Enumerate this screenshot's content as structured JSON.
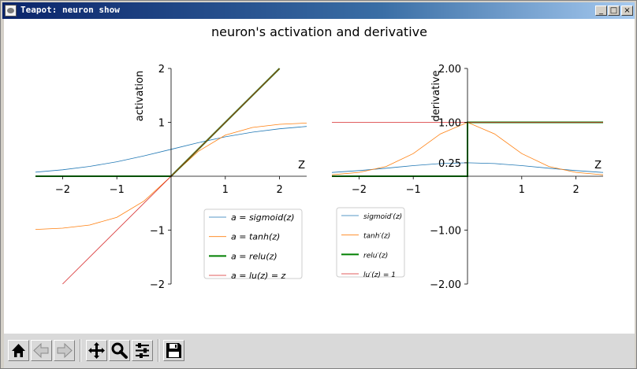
{
  "window": {
    "title": "Teapot: neuron show"
  },
  "figure": {
    "title": "neuron's activation and derivative"
  },
  "toolbar": {
    "buttons": [
      {
        "name": "home-button",
        "icon": "home-icon"
      },
      {
        "name": "back-button",
        "icon": "arrow-left-icon"
      },
      {
        "name": "forward-button",
        "icon": "arrow-right-icon"
      },
      {
        "name": "pan-button",
        "icon": "move-icon"
      },
      {
        "name": "zoom-button",
        "icon": "magnifier-icon"
      },
      {
        "name": "configure-subplots-button",
        "icon": "sliders-icon"
      },
      {
        "name": "save-button",
        "icon": "floppy-icon"
      }
    ]
  },
  "chart_data": [
    {
      "type": "line",
      "title": "",
      "xlabel": "Z",
      "ylabel": "activation",
      "xlim": [
        -2.5,
        2.5
      ],
      "ylim": [
        -2,
        2
      ],
      "xticks": [
        -2,
        -1,
        1,
        2
      ],
      "yticks": [
        -2,
        -1,
        1,
        2
      ],
      "grid": false,
      "legend_position": "lower-right",
      "series": [
        {
          "name": "$a = sigmoid(z)$",
          "color": "#1f77b4",
          "width": 0.8,
          "x": [
            -2.5,
            -2,
            -1.5,
            -1,
            -0.5,
            0,
            0.5,
            1,
            1.5,
            2,
            2.5
          ],
          "y": [
            0.076,
            0.119,
            0.182,
            0.269,
            0.378,
            0.5,
            0.622,
            0.731,
            0.818,
            0.881,
            0.924
          ]
        },
        {
          "name": "$a = tanh(z)$",
          "color": "#ff7f0e",
          "width": 0.8,
          "x": [
            -2.5,
            -2,
            -1.5,
            -1,
            -0.5,
            0,
            0.5,
            1,
            1.5,
            2,
            2.5
          ],
          "y": [
            -0.987,
            -0.964,
            -0.905,
            -0.762,
            -0.462,
            0,
            0.462,
            0.762,
            0.905,
            0.964,
            0.987
          ]
        },
        {
          "name": "$a = relu(z)$",
          "color": "#008000",
          "width": 2,
          "x": [
            -2.5,
            0,
            2.5
          ],
          "y": [
            0,
            0,
            2.5
          ]
        },
        {
          "name": "$a = lu(z) = z$",
          "color": "#d62728",
          "width": 0.8,
          "x": [
            -2,
            2
          ],
          "y": [
            -2,
            2
          ]
        }
      ]
    },
    {
      "type": "line",
      "title": "",
      "xlabel": "Z",
      "ylabel": "derivative",
      "xlim": [
        -2.5,
        2.5
      ],
      "ylim": [
        -2,
        2
      ],
      "xticks": [
        -2,
        -1,
        1,
        2
      ],
      "yticks": [
        -2,
        -1,
        0.25,
        1,
        2
      ],
      "ytick_labels": [
        "-2.00",
        "-1.00",
        "0.25",
        "1.00",
        "2.00"
      ],
      "grid": false,
      "legend_position": "lower-left",
      "series": [
        {
          "name": "$sigmoid\\'(z)$",
          "color": "#1f77b4",
          "width": 0.8,
          "x": [
            -2.5,
            -2,
            -1.5,
            -1,
            -0.5,
            0,
            0.5,
            1,
            1.5,
            2,
            2.5
          ],
          "y": [
            0.07,
            0.105,
            0.149,
            0.197,
            0.235,
            0.25,
            0.235,
            0.197,
            0.149,
            0.105,
            0.07
          ]
        },
        {
          "name": "$tanh\\'(z)$",
          "color": "#ff7f0e",
          "width": 0.8,
          "x": [
            -2.5,
            -2,
            -1.5,
            -1,
            -0.5,
            0,
            0.5,
            1,
            1.5,
            2,
            2.5
          ],
          "y": [
            0.027,
            0.071,
            0.181,
            0.42,
            0.786,
            1.0,
            0.786,
            0.42,
            0.181,
            0.071,
            0.027
          ]
        },
        {
          "name": "$relu\\'(z)$",
          "color": "#008000",
          "width": 2,
          "x": [
            -2.5,
            0,
            0,
            2.5
          ],
          "y": [
            0,
            0,
            1,
            1
          ]
        },
        {
          "name": "$lu\\'(z) = 1$",
          "color": "#d62728",
          "width": 0.8,
          "x": [
            -2.5,
            2.5
          ],
          "y": [
            1,
            1
          ]
        }
      ]
    }
  ]
}
